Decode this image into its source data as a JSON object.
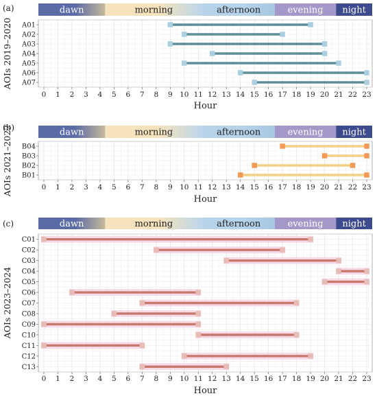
{
  "figure": {
    "xlabel": "Hour",
    "time_bands": [
      {
        "label": "dawn",
        "from": 0,
        "to": 4.8,
        "color": "#5b6ba6",
        "fade_to": "#c6b99a",
        "text_color": "#ffffff"
      },
      {
        "label": "morning",
        "from": 4.8,
        "to": 11.8,
        "color": "#f6e3bd",
        "fade_to": "#bcd6ea",
        "text_color": "#222222"
      },
      {
        "label": "afternoon",
        "from": 11.8,
        "to": 17,
        "color": "#b7d3ea",
        "fade_to": "#a7c6e2",
        "text_color": "#222222"
      },
      {
        "label": "evening",
        "from": 17,
        "to": 21.4,
        "color": "#a597c7",
        "fade_to": "#a597c7",
        "text_color": "#ffffff"
      },
      {
        "label": "night",
        "from": 21.4,
        "to": 24,
        "color": "#3d4a8e",
        "fade_to": "#3d4a8e",
        "text_color": "#ffffff"
      }
    ]
  },
  "chart_data": [
    {
      "type": "range-bar",
      "panel_label": "(a)",
      "ylabel": "AOIs 2019–2020",
      "xlabel": "Hour",
      "xlim": [
        0,
        23
      ],
      "xticks": [
        0,
        1,
        2,
        3,
        4,
        5,
        6,
        7,
        8,
        9,
        10,
        11,
        12,
        13,
        14,
        15,
        16,
        17,
        18,
        19,
        20,
        21,
        22,
        23
      ],
      "line_color": "#5f8d99",
      "marker_color": "#a9cfe0",
      "halo_color": "",
      "items": [
        {
          "name": "A01",
          "start": 9,
          "end": 19
        },
        {
          "name": "A02",
          "start": 10,
          "end": 17
        },
        {
          "name": "A03",
          "start": 9,
          "end": 20
        },
        {
          "name": "A04",
          "start": 12,
          "end": 20
        },
        {
          "name": "A05",
          "start": 10,
          "end": 21
        },
        {
          "name": "A06",
          "start": 14,
          "end": 23
        },
        {
          "name": "A07",
          "start": 15,
          "end": 23
        }
      ]
    },
    {
      "type": "range-bar",
      "panel_label": "(b)",
      "ylabel": "AOIs 2021–2022",
      "xlabel": "Hour",
      "xlim": [
        0,
        23
      ],
      "xticks": [
        0,
        1,
        2,
        3,
        4,
        5,
        6,
        7,
        8,
        9,
        10,
        11,
        12,
        13,
        14,
        15,
        16,
        17,
        18,
        19,
        20,
        21,
        22,
        23
      ],
      "line_color": "#f6cf85",
      "marker_color": "#f29a55",
      "halo_color": "",
      "items": [
        {
          "name": "B04",
          "start": 17,
          "end": 23
        },
        {
          "name": "B03",
          "start": 20,
          "end": 23
        },
        {
          "name": "B02",
          "start": 15,
          "end": 22
        },
        {
          "name": "B01",
          "start": 14,
          "end": 23
        }
      ]
    },
    {
      "type": "range-bar",
      "panel_label": "(c)",
      "ylabel": "AOIs 2023–2024",
      "xlabel": "Hour",
      "xlim": [
        0,
        23
      ],
      "xticks": [
        0,
        1,
        2,
        3,
        4,
        5,
        6,
        7,
        8,
        9,
        10,
        11,
        12,
        13,
        14,
        15,
        16,
        17,
        18,
        19,
        20,
        21,
        22,
        23
      ],
      "line_color": "#c9786d",
      "marker_color": "#e6bcb4",
      "halo_color": "#f6cfe0",
      "items": [
        {
          "name": "C01",
          "start": 0,
          "end": 19
        },
        {
          "name": "C02",
          "start": 8,
          "end": 17
        },
        {
          "name": "C03",
          "start": 13,
          "end": 21
        },
        {
          "name": "C04",
          "start": 21,
          "end": 23
        },
        {
          "name": "C05",
          "start": 20,
          "end": 23
        },
        {
          "name": "C06",
          "start": 2,
          "end": 11
        },
        {
          "name": "C07",
          "start": 7,
          "end": 18
        },
        {
          "name": "C08",
          "start": 5,
          "end": 11
        },
        {
          "name": "C09",
          "start": 0,
          "end": 11
        },
        {
          "name": "C10",
          "start": 11,
          "end": 18
        },
        {
          "name": "C11",
          "start": 0,
          "end": 7
        },
        {
          "name": "C12",
          "start": 10,
          "end": 19
        },
        {
          "name": "C13",
          "start": 7,
          "end": 13
        }
      ]
    }
  ]
}
